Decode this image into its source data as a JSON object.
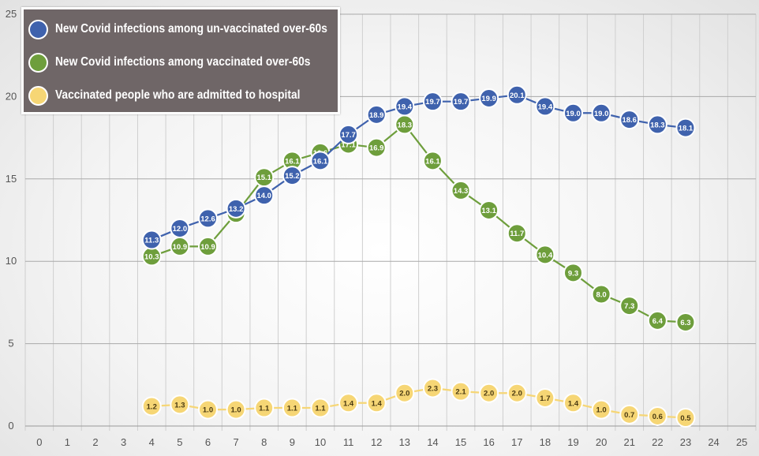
{
  "chart_data": {
    "type": "line",
    "title": "",
    "xlabel": "",
    "ylabel": "",
    "x": [
      4,
      5,
      6,
      7,
      8,
      9,
      10,
      11,
      12,
      13,
      14,
      15,
      16,
      17,
      18,
      19,
      20,
      21,
      22,
      23
    ],
    "x_ticks": [
      0,
      1,
      2,
      3,
      4,
      5,
      6,
      7,
      8,
      9,
      10,
      11,
      12,
      13,
      14,
      15,
      16,
      17,
      18,
      19,
      20,
      21,
      22,
      23,
      24,
      25
    ],
    "y_ticks": [
      0,
      5,
      10,
      15,
      20,
      25
    ],
    "xlim": [
      -0.5,
      25.5
    ],
    "ylim": [
      0,
      25
    ],
    "grid": true,
    "legend_position": "top-left",
    "series": [
      {
        "name": "New Covid infections among un-vaccinated over-60s",
        "color": "#3f62ad",
        "values": [
          11.3,
          12.0,
          12.6,
          13.2,
          14.0,
          15.2,
          16.1,
          17.7,
          18.9,
          19.4,
          19.7,
          19.7,
          19.9,
          20.1,
          19.4,
          19.0,
          19.0,
          18.6,
          18.3,
          18.1
        ]
      },
      {
        "name": "New Covid infections among vaccinated over-60s",
        "color": "#6e9e3c",
        "values": [
          10.3,
          10.9,
          10.9,
          12.9,
          15.1,
          16.1,
          16.6,
          17.1,
          16.9,
          18.3,
          16.1,
          14.3,
          13.1,
          11.7,
          10.4,
          9.3,
          8.0,
          7.3,
          6.4,
          6.3
        ]
      },
      {
        "name": "Vaccinated people who are admitted to hospital",
        "color": "#f6d675",
        "values": [
          1.2,
          1.3,
          1.0,
          1.0,
          1.1,
          1.1,
          1.1,
          1.4,
          1.4,
          2.0,
          2.3,
          2.1,
          2.0,
          2.0,
          1.7,
          1.4,
          1.0,
          0.7,
          0.6,
          0.5
        ]
      }
    ]
  }
}
